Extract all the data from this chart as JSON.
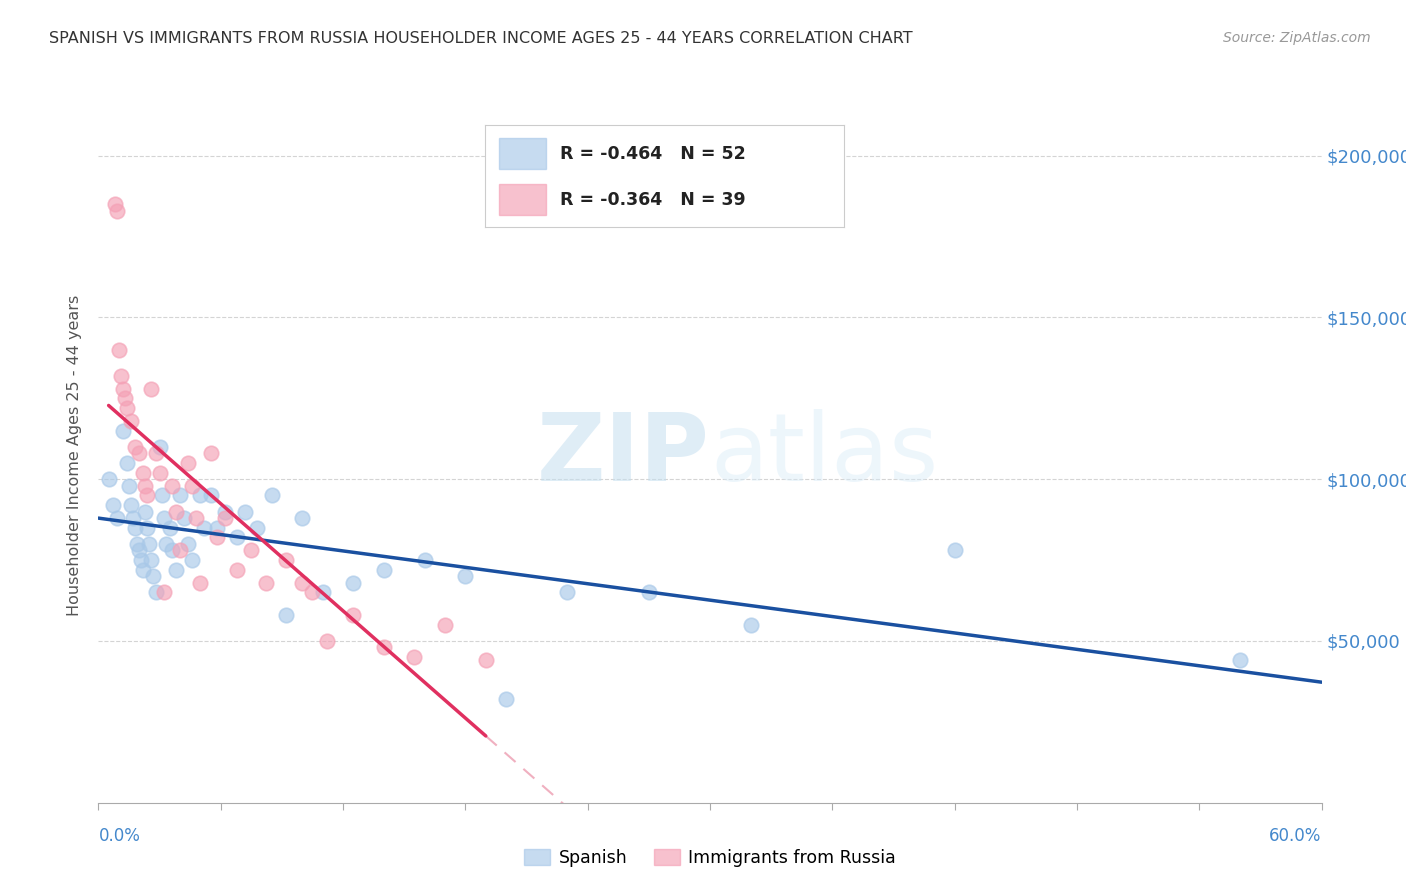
{
  "title": "SPANISH VS IMMIGRANTS FROM RUSSIA HOUSEHOLDER INCOME AGES 25 - 44 YEARS CORRELATION CHART",
  "source": "Source: ZipAtlas.com",
  "ylabel": "Householder Income Ages 25 - 44 years",
  "ylabel_values": [
    50000,
    100000,
    150000,
    200000
  ],
  "watermark_zip": "ZIP",
  "watermark_atlas": "atlas",
  "spanish_color": "#a8c8e8",
  "russia_color": "#f4a0b5",
  "spanish_line_color": "#1a50a0",
  "russia_line_color": "#e03060",
  "russia_ext_line_color": "#f0b0c0",
  "right_axis_color": "#4488cc",
  "grid_color": "#d0d0d0",
  "legend_spanish_color": "#a8c8e8",
  "legend_russia_color": "#f4a0b5",
  "R_spanish": "-0.464",
  "N_spanish": "52",
  "R_russia": "-0.364",
  "N_russia": "39",
  "spanish_scatter": {
    "x": [
      0.005,
      0.007,
      0.009,
      0.012,
      0.014,
      0.015,
      0.016,
      0.017,
      0.018,
      0.019,
      0.02,
      0.021,
      0.022,
      0.023,
      0.024,
      0.025,
      0.026,
      0.027,
      0.028,
      0.03,
      0.031,
      0.032,
      0.033,
      0.035,
      0.036,
      0.038,
      0.04,
      0.042,
      0.044,
      0.046,
      0.05,
      0.052,
      0.055,
      0.058,
      0.062,
      0.068,
      0.072,
      0.078,
      0.085,
      0.092,
      0.1,
      0.11,
      0.125,
      0.14,
      0.16,
      0.18,
      0.2,
      0.23,
      0.27,
      0.32,
      0.42,
      0.56
    ],
    "y": [
      100000,
      92000,
      88000,
      115000,
      105000,
      98000,
      92000,
      88000,
      85000,
      80000,
      78000,
      75000,
      72000,
      90000,
      85000,
      80000,
      75000,
      70000,
      65000,
      110000,
      95000,
      88000,
      80000,
      85000,
      78000,
      72000,
      95000,
      88000,
      80000,
      75000,
      95000,
      85000,
      95000,
      85000,
      90000,
      82000,
      90000,
      85000,
      95000,
      58000,
      88000,
      65000,
      68000,
      72000,
      75000,
      70000,
      32000,
      65000,
      65000,
      55000,
      78000,
      44000
    ]
  },
  "russia_scatter": {
    "x": [
      0.008,
      0.009,
      0.01,
      0.011,
      0.012,
      0.013,
      0.014,
      0.016,
      0.018,
      0.02,
      0.022,
      0.023,
      0.024,
      0.026,
      0.028,
      0.03,
      0.032,
      0.036,
      0.038,
      0.04,
      0.044,
      0.046,
      0.048,
      0.05,
      0.055,
      0.058,
      0.062,
      0.068,
      0.075,
      0.082,
      0.092,
      0.1,
      0.105,
      0.112,
      0.125,
      0.14,
      0.155,
      0.17,
      0.19
    ],
    "y": [
      185000,
      183000,
      140000,
      132000,
      128000,
      125000,
      122000,
      118000,
      110000,
      108000,
      102000,
      98000,
      95000,
      128000,
      108000,
      102000,
      65000,
      98000,
      90000,
      78000,
      105000,
      98000,
      88000,
      68000,
      108000,
      82000,
      88000,
      72000,
      78000,
      68000,
      75000,
      68000,
      65000,
      50000,
      58000,
      48000,
      45000,
      55000,
      44000
    ]
  }
}
